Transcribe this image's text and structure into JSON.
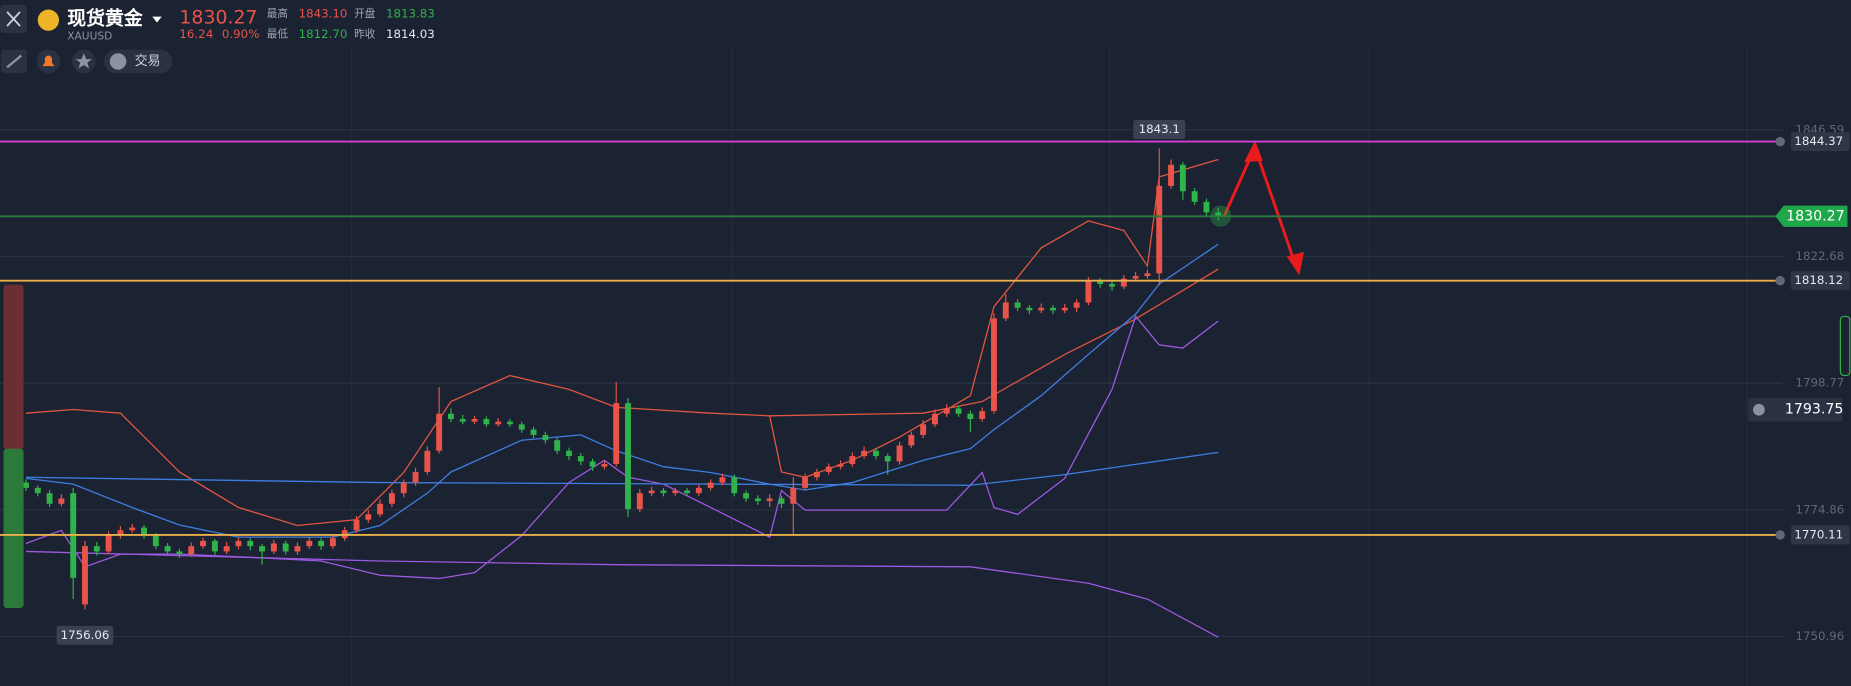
{
  "header": {
    "title": "现货黄金",
    "symbol": "XAUUSD",
    "price": "1830.27",
    "change": "16.24",
    "change_pct": "0.90%",
    "high_label": "最高",
    "high": "1843.10",
    "low_label": "最低",
    "low": "1812.70",
    "open_label": "开盘",
    "open": "1813.83",
    "prev_close_label": "昨收",
    "prev_close": "1814.03"
  },
  "toolbar": {
    "trade": "交易"
  },
  "chart_data": {
    "type": "candlestick",
    "up_color": "#e8544a",
    "down_color": "#2fb34a",
    "ylim": [
      1741.61,
      1871.09
    ],
    "yticks": [
      1750.96,
      1774.86,
      1798.77,
      1822.68,
      1846.59
    ],
    "grid": true,
    "candles": [
      [
        1780,
        1780.6,
        1778.4,
        1779
      ],
      [
        1779,
        1779.5,
        1777.4,
        1778
      ],
      [
        1778,
        1778.6,
        1775.4,
        1776
      ],
      [
        1776,
        1777.8,
        1775.5,
        1777
      ],
      [
        1778,
        1779,
        1758,
        1762
      ],
      [
        1757,
        1769,
        1756.06,
        1768
      ],
      [
        1768,
        1768.8,
        1766.2,
        1767
      ],
      [
        1767,
        1770.8,
        1766.5,
        1770
      ],
      [
        1770,
        1771.8,
        1769.4,
        1771
      ],
      [
        1771,
        1772.2,
        1770.5,
        1771.5
      ],
      [
        1771.5,
        1772,
        1769.4,
        1770
      ],
      [
        1770,
        1770.5,
        1767.4,
        1768
      ],
      [
        1768,
        1768.6,
        1766.4,
        1767
      ],
      [
        1767,
        1767.5,
        1765.8,
        1766.5
      ],
      [
        1766.5,
        1768.7,
        1766,
        1768
      ],
      [
        1768,
        1769.6,
        1767.5,
        1769
      ],
      [
        1769,
        1769.4,
        1766.3,
        1767
      ],
      [
        1767,
        1768.8,
        1766.5,
        1768
      ],
      [
        1768,
        1769.6,
        1767.4,
        1769
      ],
      [
        1769,
        1769.5,
        1767.2,
        1768
      ],
      [
        1768,
        1768.4,
        1764.5,
        1767
      ],
      [
        1767,
        1769.2,
        1766.5,
        1768.5
      ],
      [
        1768.5,
        1769,
        1766.4,
        1767
      ],
      [
        1767,
        1768.7,
        1766.4,
        1768
      ],
      [
        1768,
        1769.6,
        1767.5,
        1769
      ],
      [
        1769,
        1769.5,
        1767.3,
        1768
      ],
      [
        1768,
        1770.2,
        1767.5,
        1769.5
      ],
      [
        1769.5,
        1771.6,
        1769,
        1771
      ],
      [
        1771,
        1773.7,
        1770.5,
        1773
      ],
      [
        1773,
        1774.8,
        1772.4,
        1774
      ],
      [
        1774,
        1776.8,
        1773.5,
        1776
      ],
      [
        1776,
        1778.7,
        1775.4,
        1778
      ],
      [
        1778,
        1780.6,
        1777.2,
        1780
      ],
      [
        1780,
        1782.8,
        1779.4,
        1782
      ],
      [
        1782,
        1786.8,
        1781.5,
        1786
      ],
      [
        1786,
        1798,
        1785.5,
        1793
      ],
      [
        1793,
        1794,
        1791.4,
        1792
      ],
      [
        1792,
        1792.8,
        1791,
        1791.5
      ],
      [
        1791.5,
        1792.6,
        1791,
        1792
      ],
      [
        1792,
        1792.5,
        1790.5,
        1791
      ],
      [
        1791,
        1792.2,
        1790.6,
        1791.5
      ],
      [
        1791.5,
        1792,
        1790.5,
        1791
      ],
      [
        1791,
        1791.5,
        1789.4,
        1790
      ],
      [
        1790,
        1790.5,
        1788.4,
        1789
      ],
      [
        1789,
        1789.6,
        1787.4,
        1788
      ],
      [
        1788,
        1788.5,
        1785.4,
        1786
      ],
      [
        1786,
        1786.6,
        1784.2,
        1785
      ],
      [
        1785,
        1785.6,
        1783.3,
        1784
      ],
      [
        1784,
        1784.5,
        1782.2,
        1783
      ],
      [
        1783,
        1784.2,
        1782.5,
        1783.5
      ],
      [
        1783.5,
        1799,
        1783,
        1795
      ],
      [
        1795,
        1796,
        1773.5,
        1775
      ],
      [
        1775,
        1778.8,
        1774.4,
        1778
      ],
      [
        1778,
        1779.2,
        1777.5,
        1778.5
      ],
      [
        1778.5,
        1779,
        1777.4,
        1778
      ],
      [
        1778,
        1779,
        1777.5,
        1778.5
      ],
      [
        1778.5,
        1779,
        1777.4,
        1778
      ],
      [
        1778,
        1779.6,
        1777.5,
        1779
      ],
      [
        1779,
        1780.6,
        1778.5,
        1780
      ],
      [
        1780,
        1781.7,
        1779.5,
        1781
      ],
      [
        1781,
        1781.5,
        1777.4,
        1778
      ],
      [
        1778,
        1778.5,
        1776.4,
        1777
      ],
      [
        1777,
        1777.6,
        1775.8,
        1776.5
      ],
      [
        1776.5,
        1777.8,
        1775.4,
        1777
      ],
      [
        1777,
        1777.5,
        1775.2,
        1776
      ],
      [
        1776,
        1781,
        1770,
        1779
      ],
      [
        1779,
        1781.7,
        1778.5,
        1781
      ],
      [
        1781,
        1782.6,
        1780.4,
        1782
      ],
      [
        1782,
        1783.6,
        1781.5,
        1783
      ],
      [
        1783,
        1784.2,
        1782.5,
        1783.5
      ],
      [
        1783.5,
        1785.7,
        1783,
        1785
      ],
      [
        1785,
        1786.8,
        1784.5,
        1786
      ],
      [
        1786,
        1786.5,
        1784.4,
        1785
      ],
      [
        1785,
        1785.5,
        1781.5,
        1784
      ],
      [
        1784,
        1787.7,
        1783.4,
        1787
      ],
      [
        1787,
        1789.6,
        1786.5,
        1789
      ],
      [
        1789,
        1791.8,
        1788.4,
        1791
      ],
      [
        1791,
        1793.8,
        1790.5,
        1793
      ],
      [
        1793,
        1794.8,
        1792.4,
        1794
      ],
      [
        1794,
        1794.5,
        1792.4,
        1793
      ],
      [
        1793,
        1793.6,
        1789.5,
        1792
      ],
      [
        1792,
        1794.2,
        1791.5,
        1793.5
      ],
      [
        1793.5,
        1812,
        1793,
        1811
      ],
      [
        1811,
        1815.6,
        1810.5,
        1814
      ],
      [
        1814,
        1814.6,
        1812.4,
        1813
      ],
      [
        1813,
        1813.5,
        1811.8,
        1812.5
      ],
      [
        1812.5,
        1813.8,
        1812,
        1813
      ],
      [
        1813,
        1813.5,
        1811.8,
        1812.5
      ],
      [
        1812.5,
        1813.7,
        1812,
        1813
      ],
      [
        1813,
        1814.6,
        1812.2,
        1814
      ],
      [
        1814,
        1818.8,
        1813.5,
        1818
      ],
      [
        1818,
        1818.6,
        1816.8,
        1817.5
      ],
      [
        1817.5,
        1818,
        1816.2,
        1817
      ],
      [
        1817,
        1819.2,
        1816.5,
        1818.5
      ],
      [
        1818.5,
        1819.8,
        1818,
        1819
      ],
      [
        1819,
        1820.2,
        1818.5,
        1819.5
      ],
      [
        1819.5,
        1843.1,
        1817.2,
        1836
      ],
      [
        1836,
        1841,
        1835.5,
        1840
      ],
      [
        1840,
        1840.5,
        1833.4,
        1835
      ],
      [
        1835,
        1835.6,
        1832.4,
        1833
      ],
      [
        1833,
        1833.6,
        1830.4,
        1831
      ],
      [
        1831,
        1831.8,
        1829.5,
        1830.27
      ]
    ],
    "series": [
      {
        "color": "#e0553f",
        "x": [
          0,
          4,
          8,
          13,
          18,
          23,
          28,
          32,
          36,
          41,
          46,
          50,
          58,
          63,
          64,
          66,
          70,
          74,
          80,
          82,
          86,
          90,
          93,
          95,
          96,
          101
        ],
        "values": [
          1793.1,
          1793.8,
          1793.1,
          1782,
          1775.3,
          1771.9,
          1773,
          1781.9,
          1795.3,
          1800.2,
          1797.6,
          1794.2,
          1793.1,
          1792.6,
          1782,
          1781,
          1784.2,
          1788.6,
          1796.4,
          1813.2,
          1824.3,
          1829.4,
          1827.6,
          1820.9,
          1837.7,
          1841
        ]
      },
      {
        "color": "#e0553f",
        "x": [
          63,
          76,
          81,
          88,
          94,
          101
        ],
        "values": [
          1792.6,
          1793.1,
          1795.3,
          1804.2,
          1810.9,
          1820.3
        ]
      },
      {
        "color": "#3d7fe0",
        "x": [
          0,
          4,
          9,
          13,
          18,
          26,
          30,
          34,
          36,
          42,
          47,
          50,
          54,
          58,
          63,
          66,
          70,
          76,
          80,
          82,
          86,
          90,
          94,
          96,
          101
        ],
        "values": [
          1780.8,
          1779.7,
          1775.3,
          1772,
          1769.7,
          1769.7,
          1771.9,
          1778,
          1782,
          1788,
          1789,
          1786,
          1783,
          1781.9,
          1779.7,
          1778.6,
          1780,
          1784.2,
          1786.4,
          1790,
          1796.4,
          1804.2,
          1811.8,
          1817.5,
          1825
        ]
      },
      {
        "color": "#9b59e0",
        "x": [
          0,
          3,
          5,
          8,
          13,
          18,
          25,
          30,
          35,
          38,
          42,
          46,
          49,
          51,
          54,
          58,
          63,
          64,
          66,
          72,
          78,
          81,
          82,
          84,
          88,
          92,
          94,
          96,
          98,
          101
        ],
        "values": [
          1768.5,
          1771,
          1764.1,
          1766.5,
          1766.5,
          1766,
          1765.2,
          1762.5,
          1761.9,
          1763,
          1770,
          1780,
          1784.2,
          1781,
          1779.7,
          1775.3,
          1769.7,
          1778.5,
          1774.8,
          1774.8,
          1774.8,
          1781.9,
          1775.3,
          1774,
          1780.8,
          1797.6,
          1811.4,
          1806,
          1805.4,
          1810.5
        ]
      },
      {
        "color": "#3d7fe0",
        "x": [
          0,
          30,
          60,
          80,
          88,
          101
        ],
        "values": [
          1781,
          1780,
          1779.7,
          1779.5,
          1781.5,
          1785.7
        ]
      },
      {
        "color": "#9b59e0",
        "x": [
          0,
          30,
          50,
          80,
          90,
          95,
          101
        ],
        "values": [
          1767,
          1765.2,
          1764.5,
          1764.1,
          1761,
          1758,
          1750.8
        ]
      }
    ],
    "price_lines": [
      {
        "value": 1844.37,
        "color": "#d63bd6"
      },
      {
        "value": 1830.27,
        "color": "#2a7d3c",
        "label_color": "#1fa84a"
      },
      {
        "value": 1818.12,
        "color": "#e8b04a"
      },
      {
        "value": 1770.11,
        "color": "#e8b04a"
      }
    ],
    "alert_price": 1793.75,
    "max_label": 1843.1,
    "min_label": 1756.06
  }
}
